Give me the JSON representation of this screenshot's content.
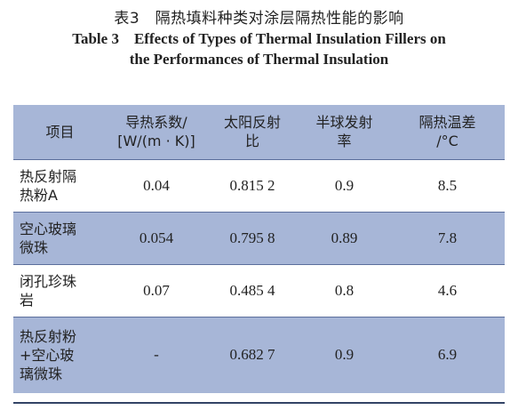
{
  "caption": {
    "zh": "表3　隔热填料种类对涂层隔热性能的影响",
    "en_line1": "Table 3　Effects of Types of Thermal Insulation Fillers on",
    "en_line2": "the Performances of Thermal Insulation"
  },
  "table": {
    "headers": [
      [
        "项目"
      ],
      [
        "导热系数/",
        "[W/(m · K)]"
      ],
      [
        "太阳反射",
        "比"
      ],
      [
        "半球发射",
        "率"
      ],
      [
        "隔热温差",
        "/°C"
      ]
    ],
    "rows": [
      {
        "name": [
          "热反射隔",
          "热粉A"
        ],
        "values": [
          "0.04",
          "0.815 2",
          "0.9",
          "8.5"
        ]
      },
      {
        "name": [
          "空心玻璃",
          "微珠"
        ],
        "values": [
          "0.054",
          "0.795 8",
          "0.89",
          "7.8"
        ]
      },
      {
        "name": [
          "闭孔珍珠",
          "岩"
        ],
        "values": [
          "0.07",
          "0.485 4",
          "0.8",
          "4.6"
        ]
      },
      {
        "name": [
          "热反射粉",
          "+空心玻",
          "璃微珠"
        ],
        "values": [
          "-",
          "0.682 7",
          "0.9",
          "6.9"
        ]
      }
    ]
  }
}
